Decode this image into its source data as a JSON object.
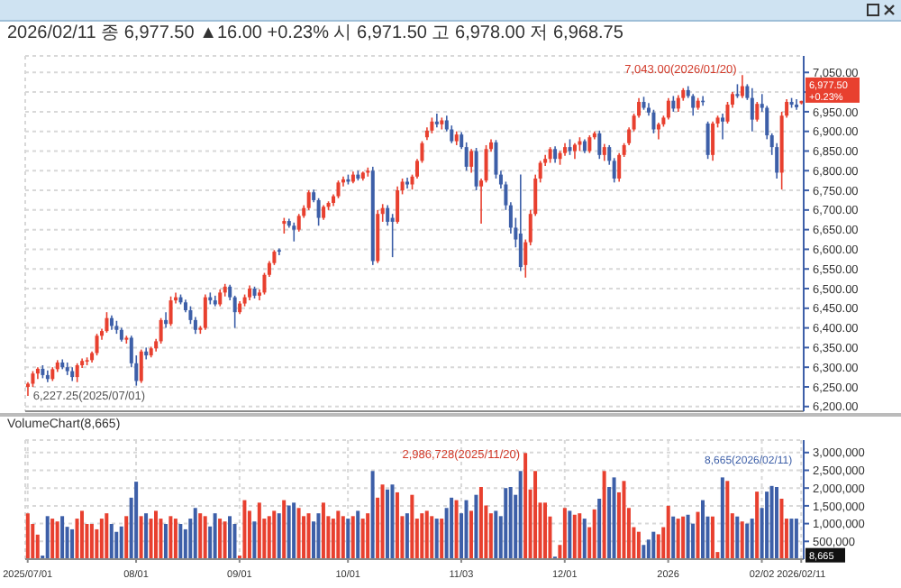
{
  "chart_data": [
    {
      "type": "candlestick",
      "title": "2026/02/11 종 6,977.50 ▲16.00 +0.23% 시 6,971.50 고 6,978.00 저 6,968.75",
      "grid": true,
      "tick_labels": "y",
      "colors": [
        "#e8402f",
        "#e8402f",
        "#e8402f",
        "#3d5fa8",
        "#3d5fa8",
        "#e8402f",
        "#e8402f",
        "#3d5fa8",
        "#3d5fa8",
        "#3d5fa8",
        "#e8402f",
        "#e8402f",
        "#e8402f",
        "#e8402f",
        "#e8402f",
        "#e8402f",
        "#e8402f",
        "#3d5fa8",
        "#3d5fa8",
        "#3d5fa8",
        "#e8402f",
        "#3d5fa8",
        "#3d5fa8",
        "#e8402f",
        "#3d5fa8",
        "#e8402f",
        "#e8402f",
        "#e8402f",
        "#3d5fa8",
        "#e8402f",
        "#e8402f",
        "#3d5fa8",
        "#3d5fa8",
        "#3d5fa8",
        "#3d5fa8",
        "#e8402f",
        "#e8402f",
        "#3d5fa8",
        "#3d5fa8",
        "#e8402f",
        "#e8402f",
        "#3d5fa8",
        "#3d5fa8",
        "#e8402f",
        "#e8402f",
        "#e8402f",
        "#3d5fa8",
        "#e8402f",
        "#e8402f",
        "#e8402f",
        "#e8402f",
        "#3d5fa8",
        "#e8402f",
        "#3d5fa8",
        "#3d5fa8",
        "#e8402f",
        "#e8402f",
        "#e8402f",
        "#3d5fa8",
        "#3d5fa8",
        "#e8402f",
        "#e8402f",
        "#e8402f",
        "#e8402f",
        "#e8402f",
        "#3d5fa8",
        "#e8402f",
        "#3d5fa8",
        "#e8402f",
        "#e8402f",
        "#3d5fa8",
        "#e8402f",
        "#e8402f",
        "#3d5fa8",
        "#3d5fa8",
        "#e8402f",
        "#e8402f",
        "#3d5fa8",
        "#e8402f",
        "#e8402f",
        "#e8402f",
        "#e8402f",
        "#e8402f",
        "#3d5fa8",
        "#e8402f",
        "#3d5fa8",
        "#3d5fa8",
        "#e8402f",
        "#3d5fa8",
        "#3d5fa8",
        "#e8402f",
        "#3d5fa8",
        "#e8402f",
        "#e8402f",
        "#e8402f",
        "#3d5fa8",
        "#3d5fa8",
        "#3d5fa8",
        "#3d5fa8",
        "#3d5fa8",
        "#3d5fa8",
        "#e8402f",
        "#e8402f",
        "#e8402f",
        "#e8402f",
        "#e8402f",
        "#e8402f",
        "#3d5fa8",
        "#e8402f",
        "#e8402f",
        "#3d5fa8",
        "#e8402f",
        "#e8402f",
        "#3d5fa8",
        "#e8402f",
        "#e8402f",
        "#3d5fa8",
        "#e8402f",
        "#3d5fa8",
        "#3d5fa8",
        "#e8402f",
        "#e8402f",
        "#e8402f",
        "#e8402f",
        "#e8402f",
        "#3d5fa8",
        "#3d5fa8",
        "#3d5fa8",
        "#e8402f",
        "#e8402f",
        "#e8402f",
        "#3d5fa8",
        "#e8402f",
        "#e8402f",
        "#3d5fa8",
        "#3d5fa8",
        "#e8402f",
        "#3d5fa8",
        "#3d5fa8",
        "#e8402f",
        "#e8402f",
        "#3d5fa8",
        "#e8402f",
        "#e8402f",
        "#3d5fa8",
        "#e8402f",
        "#3d5fa8",
        "#3d5fa8",
        "#e8402f",
        "#3d5fa8",
        "#3d5fa8",
        "#3d5fa8",
        "#3d5fa8",
        "#e8402f",
        "#e8402f",
        "#3d5fa8",
        "#3d5fa8",
        "#e8402f"
      ],
      "ohlc": [
        [
          6250,
          6262,
          6227.25,
          6258
        ],
        [
          6258,
          6290,
          6250,
          6284
        ],
        [
          6284,
          6300,
          6270,
          6296
        ],
        [
          6296,
          6305,
          6272,
          6280
        ],
        [
          6280,
          6292,
          6262,
          6270
        ],
        [
          6270,
          6300,
          6265,
          6295
        ],
        [
          6295,
          6318,
          6288,
          6312
        ],
        [
          6312,
          6320,
          6295,
          6300
        ],
        [
          6300,
          6312,
          6280,
          6290
        ],
        [
          6290,
          6300,
          6265,
          6275
        ],
        [
          6275,
          6310,
          6262,
          6305
        ],
        [
          6305,
          6322,
          6298,
          6316
        ],
        [
          6316,
          6325,
          6305,
          6318
        ],
        [
          6318,
          6340,
          6312,
          6336
        ],
        [
          6336,
          6385,
          6330,
          6380
        ],
        [
          6380,
          6398,
          6370,
          6392
        ],
        [
          6392,
          6440,
          6388,
          6425
        ],
        [
          6425,
          6432,
          6395,
          6405
        ],
        [
          6405,
          6418,
          6385,
          6395
        ],
        [
          6395,
          6400,
          6365,
          6370
        ],
        [
          6370,
          6380,
          6360,
          6375
        ],
        [
          6375,
          6380,
          6300,
          6310
        ],
        [
          6310,
          6330,
          6253,
          6265
        ],
        [
          6265,
          6345,
          6260,
          6340
        ],
        [
          6340,
          6350,
          6320,
          6330
        ],
        [
          6330,
          6352,
          6325,
          6348
        ],
        [
          6348,
          6372,
          6340,
          6366
        ],
        [
          6366,
          6425,
          6360,
          6420
        ],
        [
          6420,
          6440,
          6400,
          6410
        ],
        [
          6410,
          6480,
          6405,
          6470
        ],
        [
          6470,
          6490,
          6462,
          6478
        ],
        [
          6478,
          6485,
          6460,
          6465
        ],
        [
          6465,
          6472,
          6440,
          6445
        ],
        [
          6445,
          6455,
          6410,
          6420
        ],
        [
          6420,
          6428,
          6385,
          6395
        ],
        [
          6395,
          6405,
          6385,
          6400
        ],
        [
          6400,
          6485,
          6395,
          6478
        ],
        [
          6478,
          6490,
          6460,
          6470
        ],
        [
          6470,
          6482,
          6455,
          6460
        ],
        [
          6460,
          6498,
          6455,
          6490
        ],
        [
          6490,
          6512,
          6480,
          6505
        ],
        [
          6505,
          6510,
          6470,
          6478
        ],
        [
          6478,
          6482,
          6400,
          6440
        ],
        [
          6440,
          6468,
          6435,
          6462
        ],
        [
          6462,
          6485,
          6455,
          6478
        ],
        [
          6478,
          6508,
          6470,
          6500
        ],
        [
          6500,
          6505,
          6475,
          6482
        ],
        [
          6482,
          6498,
          6470,
          6490
        ],
        [
          6490,
          6540,
          6485,
          6535
        ],
        [
          6535,
          6570,
          6530,
          6565
        ],
        [
          6565,
          6598,
          6560,
          6594
        ],
        [
          6598,
          6602,
          6585,
          6594
        ],
        [
          6665,
          6680,
          6640,
          6672
        ],
        [
          6672,
          6678,
          6655,
          6660
        ],
        [
          6660,
          6668,
          6620,
          6650
        ],
        [
          6650,
          6690,
          6645,
          6685
        ],
        [
          6685,
          6712,
          6680,
          6705
        ],
        [
          6705,
          6750,
          6700,
          6745
        ],
        [
          6745,
          6752,
          6720,
          6725
        ],
        [
          6725,
          6730,
          6660,
          6680
        ],
        [
          6680,
          6712,
          6675,
          6708
        ],
        [
          6708,
          6722,
          6700,
          6718
        ],
        [
          6718,
          6740,
          6710,
          6735
        ],
        [
          6735,
          6775,
          6730,
          6770
        ],
        [
          6770,
          6785,
          6760,
          6778
        ],
        [
          6778,
          6790,
          6765,
          6772
        ],
        [
          6772,
          6798,
          6768,
          6790
        ],
        [
          6790,
          6800,
          6775,
          6780
        ],
        [
          6780,
          6798,
          6775,
          6795
        ],
        [
          6795,
          6808,
          6785,
          6800
        ],
        [
          6800,
          6810,
          6560,
          6570
        ],
        [
          6570,
          6700,
          6565,
          6690
        ],
        [
          6690,
          6715,
          6670,
          6705
        ],
        [
          6705,
          6712,
          6660,
          6670
        ],
        [
          6680,
          6690,
          6580,
          6670
        ],
        [
          6670,
          6760,
          6665,
          6750
        ],
        [
          6750,
          6780,
          6740,
          6772
        ],
        [
          6772,
          6782,
          6755,
          6765
        ],
        [
          6765,
          6790,
          6752,
          6785
        ],
        [
          6785,
          6830,
          6780,
          6825
        ],
        [
          6825,
          6875,
          6820,
          6870
        ],
        [
          6885,
          6910,
          6878,
          6902
        ],
        [
          6902,
          6935,
          6895,
          6925
        ],
        [
          6925,
          6945,
          6910,
          6918
        ],
        [
          6918,
          6935,
          6905,
          6928
        ],
        [
          6928,
          6940,
          6900,
          6905
        ],
        [
          6905,
          6915,
          6870,
          6875
        ],
        [
          6875,
          6900,
          6865,
          6892
        ],
        [
          6892,
          6898,
          6855,
          6860
        ],
        [
          6860,
          6872,
          6800,
          6810
        ],
        [
          6810,
          6855,
          6795,
          6850
        ],
        [
          6850,
          6858,
          6750,
          6760
        ],
        [
          6760,
          6780,
          6665,
          6775
        ],
        [
          6775,
          6865,
          6770,
          6855
        ],
        [
          6855,
          6880,
          6848,
          6872
        ],
        [
          6872,
          6878,
          6780,
          6790
        ],
        [
          6790,
          6800,
          6755,
          6765
        ],
        [
          6765,
          6772,
          6700,
          6712
        ],
        [
          6712,
          6720,
          6640,
          6655
        ],
        [
          6655,
          6680,
          6605,
          6625
        ],
        [
          6640,
          6790,
          6545,
          6555
        ],
        [
          6560,
          6625,
          6528,
          6618
        ],
        [
          6618,
          6700,
          6610,
          6690
        ],
        [
          6690,
          6790,
          6685,
          6780
        ],
        [
          6780,
          6825,
          6770,
          6820
        ],
        [
          6820,
          6840,
          6812,
          6830
        ],
        [
          6830,
          6860,
          6820,
          6855
        ],
        [
          6855,
          6862,
          6820,
          6830
        ],
        [
          6830,
          6850,
          6815,
          6845
        ],
        [
          6845,
          6870,
          6838,
          6860
        ],
        [
          6860,
          6880,
          6840,
          6850
        ],
        [
          6850,
          6870,
          6830,
          6866
        ],
        [
          6866,
          6885,
          6850,
          6875
        ],
        [
          6875,
          6880,
          6845,
          6850
        ],
        [
          6850,
          6890,
          6845,
          6885
        ],
        [
          6885,
          6900,
          6880,
          6895
        ],
        [
          6895,
          6902,
          6830,
          6840
        ],
        [
          6840,
          6868,
          6825,
          6860
        ],
        [
          6860,
          6865,
          6815,
          6825
        ],
        [
          6825,
          6832,
          6770,
          6780
        ],
        [
          6780,
          6845,
          6772,
          6840
        ],
        [
          6840,
          6870,
          6835,
          6865
        ],
        [
          6870,
          6910,
          6865,
          6905
        ],
        [
          6905,
          6945,
          6900,
          6940
        ],
        [
          6940,
          6985,
          6935,
          6975
        ],
        [
          6975,
          6988,
          6955,
          6960
        ],
        [
          6960,
          6972,
          6940,
          6948
        ],
        [
          6948,
          6955,
          6895,
          6905
        ],
        [
          6905,
          6922,
          6880,
          6918
        ],
        [
          6918,
          6940,
          6912,
          6935
        ],
        [
          6935,
          6985,
          6930,
          6978
        ],
        [
          6978,
          6990,
          6950,
          6958
        ],
        [
          6958,
          6992,
          6950,
          6985
        ],
        [
          6985,
          7010,
          6978,
          7005
        ],
        [
          7005,
          7015,
          6985,
          6990
        ],
        [
          6990,
          6995,
          6940,
          6960
        ],
        [
          6960,
          6985,
          6955,
          6978
        ],
        [
          6978,
          6990,
          6965,
          6975
        ],
        [
          6920,
          6925,
          6830,
          6840
        ],
        [
          6840,
          6925,
          6825,
          6920
        ],
        [
          6920,
          6940,
          6910,
          6935
        ],
        [
          6935,
          6945,
          6880,
          6925
        ],
        [
          6925,
          6975,
          6920,
          6968
        ],
        [
          6968,
          7000,
          6960,
          6995
        ],
        [
          6995,
          7020,
          6985,
          6990
        ],
        [
          6990,
          7043,
          6985,
          7015
        ],
        [
          7015,
          7020,
          6980,
          6985
        ],
        [
          6985,
          7010,
          6900,
          6930
        ],
        [
          6930,
          6975,
          6925,
          6970
        ],
        [
          6970,
          6995,
          6950,
          6960
        ],
        [
          6960,
          6965,
          6880,
          6890
        ],
        [
          6890,
          6895,
          6840,
          6860
        ],
        [
          6860,
          6870,
          6780,
          6795
        ],
        [
          6795,
          6950,
          6752,
          6940
        ],
        [
          6940,
          6982,
          6935,
          6975
        ],
        [
          6975,
          6985,
          6960,
          6968
        ],
        [
          6968,
          6982,
          6955,
          6961.5
        ],
        [
          6971.5,
          6978,
          6968.75,
          6977.5
        ]
      ],
      "ylim": [
        6188,
        7092
      ],
      "yticks": [
        {
          "value": 6200,
          "label": "6,200.00"
        },
        {
          "value": 6250,
          "label": "6,250.00"
        },
        {
          "value": 6300,
          "label": "6,300.00"
        },
        {
          "value": 6350,
          "label": "6,350.00"
        },
        {
          "value": 6400,
          "label": "6,400.00"
        },
        {
          "value": 6450,
          "label": "6,450.00"
        },
        {
          "value": 6500,
          "label": "6,500.00"
        },
        {
          "value": 6550,
          "label": "6,550.00"
        },
        {
          "value": 6600,
          "label": "6,600.00"
        },
        {
          "value": 6650,
          "label": "6,650.00"
        },
        {
          "value": 6700,
          "label": "6,700.00"
        },
        {
          "value": 6750,
          "label": "6,750.00"
        },
        {
          "value": 6800,
          "label": "6,800.00"
        },
        {
          "value": 6850,
          "label": "6,850.00"
        },
        {
          "value": 6900,
          "label": "6,900.00"
        },
        {
          "value": 6950,
          "label": "6,950.00"
        },
        {
          "value": 7000,
          "label": null
        },
        {
          "value": 7050,
          "label": "7,050.00"
        }
      ],
      "annotations": [
        "7,043.00(2026/01/20)",
        "6,227.25(2025/07/01)",
        "6,977.50",
        "+0.23%"
      ]
    },
    {
      "type": "bar",
      "title": "VolumeChart(8,665)",
      "grid": true,
      "categories": [
        "2025/07/01",
        null,
        null,
        null,
        null,
        null,
        null,
        null,
        null,
        null,
        null,
        null,
        null,
        null,
        null,
        null,
        null,
        null,
        null,
        null,
        null,
        null,
        "08/01",
        null,
        null,
        null,
        null,
        null,
        null,
        null,
        null,
        null,
        null,
        null,
        null,
        null,
        null,
        null,
        null,
        null,
        null,
        null,
        null,
        "09/01",
        null,
        null,
        null,
        null,
        null,
        null,
        null,
        null,
        null,
        null,
        null,
        null,
        null,
        null,
        null,
        null,
        null,
        null,
        null,
        null,
        null,
        "10/01",
        null,
        null,
        null,
        null,
        null,
        null,
        null,
        null,
        null,
        null,
        null,
        null,
        null,
        null,
        null,
        null,
        null,
        null,
        null,
        null,
        null,
        null,
        "11/03",
        null,
        null,
        null,
        null,
        null,
        null,
        null,
        null,
        null,
        null,
        null,
        null,
        null,
        null,
        null,
        null,
        null,
        null,
        null,
        null,
        "12/01",
        null,
        null,
        null,
        null,
        null,
        null,
        null,
        null,
        null,
        null,
        null,
        null,
        null,
        null,
        null,
        null,
        null,
        null,
        null,
        null,
        "2026",
        null,
        null,
        null,
        null,
        null,
        null,
        null,
        null,
        null,
        null,
        null,
        null,
        null,
        null,
        null,
        null,
        null,
        null,
        "02/02",
        null,
        null,
        null,
        null,
        null,
        null,
        null,
        "2026/02/11"
      ],
      "values": [
        1290000,
        990000,
        690000,
        100000,
        1210000,
        1140000,
        1060000,
        1210000,
        910000,
        840000,
        1140000,
        1360000,
        990000,
        990000,
        840000,
        1140000,
        1290000,
        990000,
        770000,
        920000,
        1210000,
        1730000,
        2180000,
        1210000,
        1290000,
        1140000,
        1360000,
        1140000,
        990000,
        1210000,
        1140000,
        990000,
        840000,
        1140000,
        1440000,
        1290000,
        1210000,
        920000,
        1290000,
        1140000,
        1060000,
        1210000,
        990000,
        100000,
        1660000,
        1360000,
        1060000,
        1590000,
        1140000,
        1210000,
        1360000,
        1290000,
        1660000,
        1510000,
        1590000,
        1440000,
        1210000,
        1290000,
        1060000,
        1290000,
        1590000,
        1210000,
        1140000,
        1360000,
        1210000,
        1140000,
        1210000,
        1360000,
        1140000,
        1290000,
        2480000,
        1730000,
        2100000,
        1960000,
        2100000,
        1880000,
        1210000,
        1290000,
        1810000,
        1140000,
        1290000,
        1360000,
        1210000,
        1140000,
        1140000,
        1440000,
        1730000,
        1660000,
        1290000,
        1660000,
        1360000,
        1810000,
        2030000,
        1510000,
        1290000,
        1360000,
        1210000,
        2000000,
        2030000,
        1810000,
        2480000,
        2986728,
        1960000,
        2480000,
        1590000,
        1590000,
        1200000,
        70000,
        400000,
        1440000,
        1360000,
        1250000,
        1290000,
        1140000,
        900000,
        1400000,
        1700000,
        2480000,
        2030000,
        2300000,
        1880000,
        2200000,
        1440000,
        900000,
        770000,
        400000,
        550000,
        770000,
        700000,
        900000,
        1500000,
        1200000,
        1140000,
        1200000,
        1250000,
        1000000,
        1330000,
        1660000,
        1200000,
        1200000,
        200000,
        2300000,
        2200000,
        1290000,
        1200000,
        1060000,
        1000000,
        1140000,
        1900000,
        1440000,
        1900000,
        2060000,
        2030000,
        1700000,
        1140000,
        1140000,
        1140000,
        8665
      ],
      "colors": [
        "#e8402f",
        "#e8402f",
        "#e8402f",
        "#3d5fa8",
        "#3d5fa8",
        "#e8402f",
        "#e8402f",
        "#3d5fa8",
        "#3d5fa8",
        "#3d5fa8",
        "#e8402f",
        "#e8402f",
        "#e8402f",
        "#e8402f",
        "#e8402f",
        "#e8402f",
        "#e8402f",
        "#3d5fa8",
        "#3d5fa8",
        "#3d5fa8",
        "#e8402f",
        "#3d5fa8",
        "#3d5fa8",
        "#e8402f",
        "#3d5fa8",
        "#e8402f",
        "#e8402f",
        "#e8402f",
        "#3d5fa8",
        "#e8402f",
        "#e8402f",
        "#3d5fa8",
        "#3d5fa8",
        "#3d5fa8",
        "#3d5fa8",
        "#e8402f",
        "#e8402f",
        "#3d5fa8",
        "#3d5fa8",
        "#e8402f",
        "#e8402f",
        "#3d5fa8",
        "#3d5fa8",
        "#e8402f",
        "#e8402f",
        "#e8402f",
        "#3d5fa8",
        "#e8402f",
        "#e8402f",
        "#e8402f",
        "#e8402f",
        "#3d5fa8",
        "#e8402f",
        "#3d5fa8",
        "#3d5fa8",
        "#e8402f",
        "#e8402f",
        "#e8402f",
        "#3d5fa8",
        "#3d5fa8",
        "#e8402f",
        "#e8402f",
        "#e8402f",
        "#e8402f",
        "#e8402f",
        "#3d5fa8",
        "#e8402f",
        "#3d5fa8",
        "#e8402f",
        "#e8402f",
        "#3d5fa8",
        "#e8402f",
        "#e8402f",
        "#3d5fa8",
        "#3d5fa8",
        "#e8402f",
        "#e8402f",
        "#3d5fa8",
        "#e8402f",
        "#e8402f",
        "#e8402f",
        "#e8402f",
        "#e8402f",
        "#3d5fa8",
        "#e8402f",
        "#3d5fa8",
        "#3d5fa8",
        "#e8402f",
        "#3d5fa8",
        "#3d5fa8",
        "#e8402f",
        "#3d5fa8",
        "#e8402f",
        "#e8402f",
        "#e8402f",
        "#3d5fa8",
        "#3d5fa8",
        "#3d5fa8",
        "#3d5fa8",
        "#3d5fa8",
        "#3d5fa8",
        "#e8402f",
        "#e8402f",
        "#e8402f",
        "#e8402f",
        "#e8402f",
        "#e8402f",
        "#3d5fa8",
        "#e8402f",
        "#e8402f",
        "#3d5fa8",
        "#e8402f",
        "#e8402f",
        "#3d5fa8",
        "#e8402f",
        "#e8402f",
        "#3d5fa8",
        "#e8402f",
        "#3d5fa8",
        "#3d5fa8",
        "#e8402f",
        "#e8402f",
        "#e8402f",
        "#e8402f",
        "#e8402f",
        "#3d5fa8",
        "#3d5fa8",
        "#3d5fa8",
        "#e8402f",
        "#e8402f",
        "#e8402f",
        "#3d5fa8",
        "#e8402f",
        "#e8402f",
        "#3d5fa8",
        "#3d5fa8",
        "#e8402f",
        "#3d5fa8",
        "#3d5fa8",
        "#e8402f",
        "#e8402f",
        "#3d5fa8",
        "#e8402f",
        "#e8402f",
        "#3d5fa8",
        "#e8402f",
        "#3d5fa8",
        "#3d5fa8",
        "#e8402f",
        "#3d5fa8",
        "#3d5fa8",
        "#3d5fa8",
        "#3d5fa8",
        "#e8402f",
        "#e8402f",
        "#3d5fa8",
        "#3d5fa8",
        "#e8402f"
      ],
      "ylim": [
        0,
        3350000
      ],
      "yticks": [
        {
          "value": 500000,
          "label": "500,000"
        },
        {
          "value": 1000000,
          "label": "1,000,000"
        },
        {
          "value": 1500000,
          "label": "1,500,000"
        },
        {
          "value": 2000000,
          "label": "2,000,000"
        },
        {
          "value": 2500000,
          "label": "2,500,000"
        },
        {
          "value": 3000000,
          "label": "3,000,000"
        }
      ],
      "annotations": [
        "2,986,728(2025/11/20)",
        "8,665(2026/02/11)",
        "8,665"
      ]
    }
  ]
}
